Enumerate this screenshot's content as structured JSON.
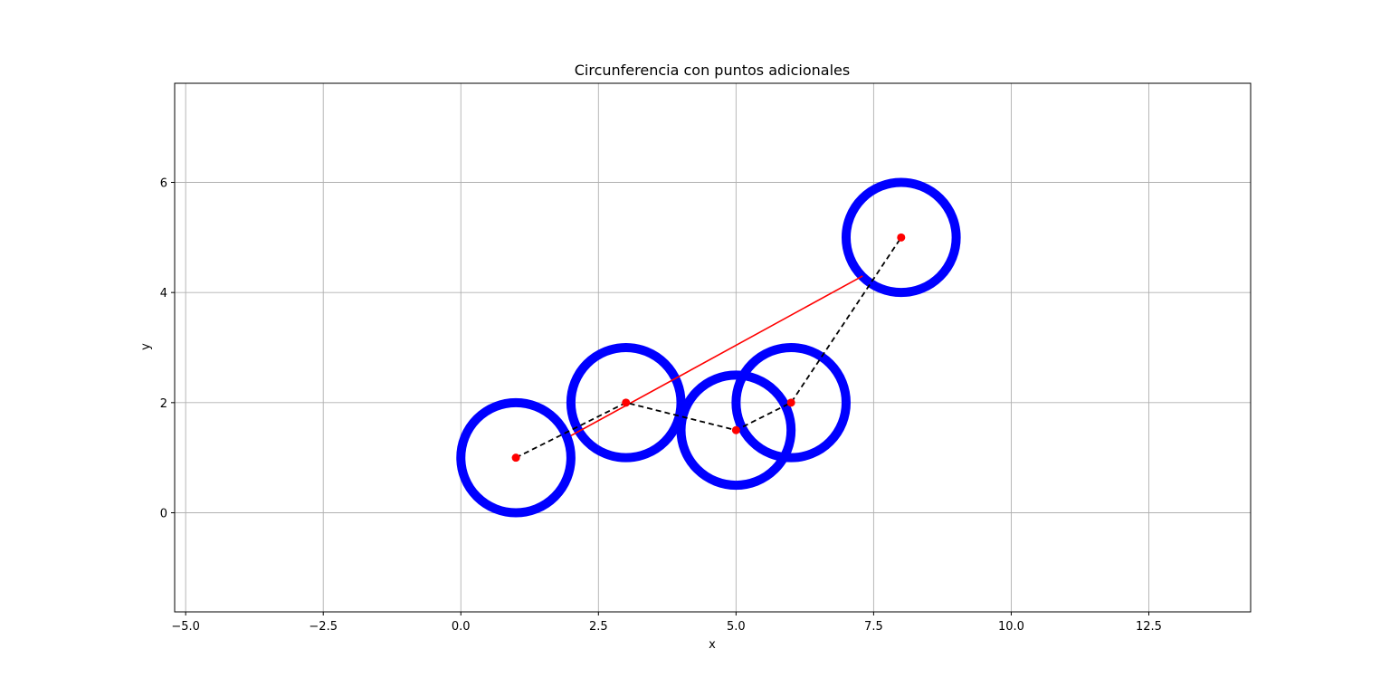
{
  "chart_data": {
    "type": "scatter",
    "title": "Circunferencia con puntos adicionales",
    "xlabel": "x",
    "ylabel": "y",
    "xlim": [
      -5.2,
      14.35
    ],
    "ylim": [
      -1.8,
      7.8
    ],
    "grid": true,
    "x_ticks": [
      -5.0,
      -2.5,
      0.0,
      2.5,
      5.0,
      7.5,
      10.0,
      12.5
    ],
    "x_tick_labels": [
      "−5.0",
      "−2.5",
      "0.0",
      "2.5",
      "5.0",
      "7.5",
      "10.0",
      "12.5"
    ],
    "y_ticks": [
      0,
      2,
      4,
      6
    ],
    "y_tick_labels": [
      "0",
      "2",
      "4",
      "6"
    ],
    "points": [
      {
        "x": 1,
        "y": 1
      },
      {
        "x": 3,
        "y": 2
      },
      {
        "x": 5,
        "y": 1.5
      },
      {
        "x": 6,
        "y": 2
      },
      {
        "x": 8,
        "y": 5
      }
    ],
    "circle_radius": 1,
    "regression_line": {
      "x1": 2,
      "y1": 1.4,
      "x2": 7.3,
      "y2": 4.3
    },
    "colors": {
      "circle": "#0000ff",
      "point": "#ff0000",
      "regression_line": "#ff0000",
      "path_line": "#000000",
      "grid": "#b0b0b0"
    }
  }
}
